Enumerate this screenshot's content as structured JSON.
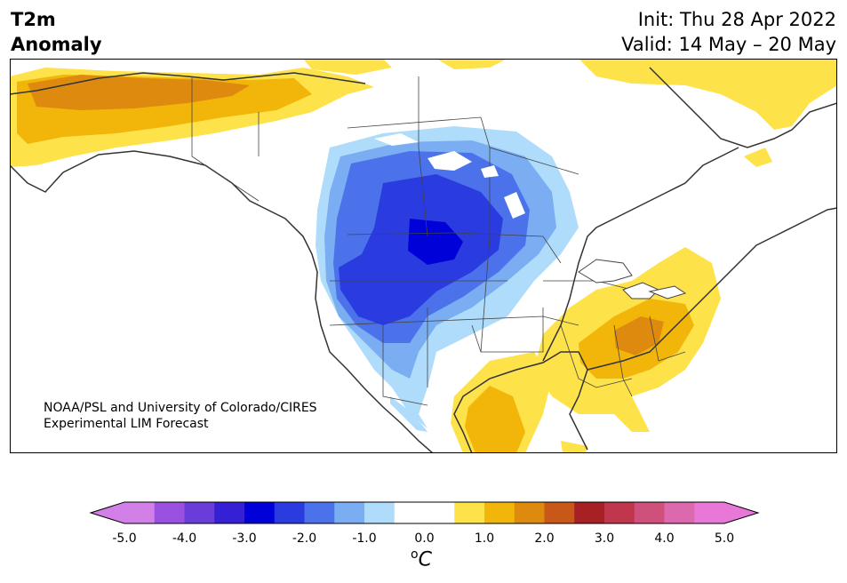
{
  "title": {
    "line1": "T2m",
    "line2": "Anomaly",
    "init": "Init: Thu 28 Apr 2022",
    "valid": "Valid: 14 May – 20 May"
  },
  "credit": {
    "line1": "NOAA/PSL and University of Colorado/CIRES",
    "line2": "Experimental LIM Forecast"
  },
  "colorbar": {
    "ticks": [
      "-5.0",
      "-4.0",
      "-3.0",
      "-2.0",
      "-1.0",
      "0.0",
      "1.0",
      "2.0",
      "3.0",
      "4.0",
      "5.0"
    ],
    "unit_base": "C",
    "unit_sup": "o",
    "colors": [
      "#d27fe8",
      "#9b51e0",
      "#6a3ddb",
      "#3520d6",
      "#0000d8",
      "#2a3ce0",
      "#4b72ea",
      "#7aadf2",
      "#aedcfa",
      "#ffffff",
      "#ffffff",
      "#fde24a",
      "#f2b50a",
      "#dd8a0f",
      "#c75818",
      "#a72024",
      "#c0364d",
      "#cf507a",
      "#dc68ad",
      "#e778d8"
    ],
    "extend_low": "#d27fe8",
    "extend_high": "#e778d8"
  },
  "colors": {
    "cold_light": "#aedcfa",
    "cold_mid": "#7aadf2",
    "cold_strong": "#4b72ea",
    "cold_deep": "#2a3ce0",
    "cold_core": "#0000d8",
    "warm_light": "#fde24a",
    "warm_mid": "#f2b50a",
    "warm_strong": "#dd8a0f"
  }
}
